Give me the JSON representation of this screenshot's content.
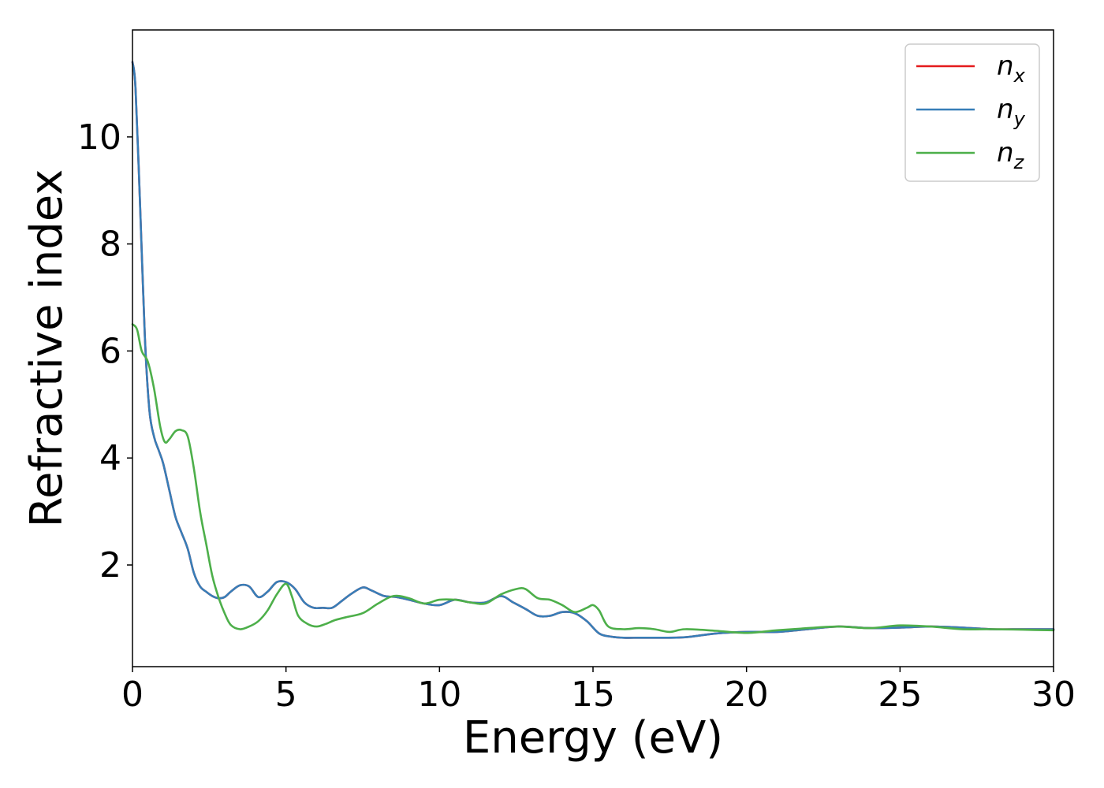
{
  "chart_data": {
    "type": "line",
    "xlabel": "Energy (eV)",
    "ylabel": "Refractive index",
    "xlim": [
      0,
      30
    ],
    "ylim": [
      0.1,
      12.0
    ],
    "x_ticks": [
      0,
      5,
      10,
      15,
      20,
      25,
      30
    ],
    "y_ticks": [
      2,
      4,
      6,
      8,
      10
    ],
    "grid": false,
    "legend_position": "top-right",
    "series": [
      {
        "name": "n_x",
        "name_base": "n",
        "name_sub": "x",
        "color": "#e41a1c",
        "x": [
          0.0,
          0.1,
          0.25,
          0.4,
          0.55,
          0.7,
          0.85,
          1.0,
          1.2,
          1.4,
          1.6,
          1.8,
          2.0,
          2.2,
          2.4,
          2.6,
          2.8,
          3.0,
          3.2,
          3.5,
          3.8,
          4.1,
          4.4,
          4.7,
          5.0,
          5.3,
          5.6,
          5.9,
          6.2,
          6.5,
          6.8,
          7.1,
          7.5,
          7.8,
          8.2,
          8.6,
          9.0,
          9.5,
          10.0,
          10.5,
          11.0,
          11.5,
          12.0,
          12.4,
          12.8,
          13.2,
          13.6,
          14.0,
          14.4,
          14.8,
          15.2,
          15.6,
          16.0,
          16.5,
          17.0,
          18.0,
          19.0,
          20.0,
          21.0,
          22.0,
          23.0,
          24.0,
          25.0,
          26.0,
          27.0,
          28.0,
          29.0,
          30.0
        ],
        "values": [
          11.4,
          10.9,
          8.7,
          6.3,
          4.9,
          4.4,
          4.15,
          3.9,
          3.4,
          2.9,
          2.6,
          2.3,
          1.85,
          1.6,
          1.5,
          1.42,
          1.38,
          1.4,
          1.5,
          1.62,
          1.6,
          1.4,
          1.5,
          1.68,
          1.68,
          1.55,
          1.3,
          1.2,
          1.2,
          1.2,
          1.32,
          1.45,
          1.58,
          1.52,
          1.42,
          1.4,
          1.35,
          1.28,
          1.25,
          1.35,
          1.3,
          1.3,
          1.42,
          1.3,
          1.18,
          1.05,
          1.05,
          1.12,
          1.1,
          0.95,
          0.72,
          0.66,
          0.64,
          0.64,
          0.64,
          0.65,
          0.72,
          0.75,
          0.75,
          0.8,
          0.85,
          0.82,
          0.83,
          0.85,
          0.83,
          0.8,
          0.8,
          0.8
        ]
      },
      {
        "name": "n_y",
        "name_base": "n",
        "name_sub": "y",
        "color": "#377eb8",
        "x": [
          0.0,
          0.1,
          0.25,
          0.4,
          0.55,
          0.7,
          0.85,
          1.0,
          1.2,
          1.4,
          1.6,
          1.8,
          2.0,
          2.2,
          2.4,
          2.6,
          2.8,
          3.0,
          3.2,
          3.5,
          3.8,
          4.1,
          4.4,
          4.7,
          5.0,
          5.3,
          5.6,
          5.9,
          6.2,
          6.5,
          6.8,
          7.1,
          7.5,
          7.8,
          8.2,
          8.6,
          9.0,
          9.5,
          10.0,
          10.5,
          11.0,
          11.5,
          12.0,
          12.4,
          12.8,
          13.2,
          13.6,
          14.0,
          14.4,
          14.8,
          15.2,
          15.6,
          16.0,
          16.5,
          17.0,
          18.0,
          19.0,
          20.0,
          21.0,
          22.0,
          23.0,
          24.0,
          25.0,
          26.0,
          27.0,
          28.0,
          29.0,
          30.0
        ],
        "values": [
          11.4,
          10.9,
          8.7,
          6.3,
          4.9,
          4.4,
          4.15,
          3.9,
          3.4,
          2.9,
          2.6,
          2.3,
          1.85,
          1.6,
          1.5,
          1.42,
          1.38,
          1.4,
          1.5,
          1.62,
          1.6,
          1.4,
          1.5,
          1.68,
          1.68,
          1.55,
          1.3,
          1.2,
          1.2,
          1.2,
          1.32,
          1.45,
          1.58,
          1.52,
          1.42,
          1.4,
          1.35,
          1.28,
          1.25,
          1.35,
          1.3,
          1.3,
          1.42,
          1.3,
          1.18,
          1.05,
          1.05,
          1.12,
          1.1,
          0.95,
          0.72,
          0.66,
          0.64,
          0.64,
          0.64,
          0.65,
          0.72,
          0.75,
          0.75,
          0.8,
          0.85,
          0.82,
          0.83,
          0.85,
          0.83,
          0.8,
          0.8,
          0.8
        ]
      },
      {
        "name": "n_z",
        "name_base": "n",
        "name_sub": "z",
        "color": "#4daf4a",
        "x": [
          0.0,
          0.15,
          0.3,
          0.5,
          0.7,
          0.9,
          1.05,
          1.2,
          1.4,
          1.6,
          1.8,
          2.0,
          2.2,
          2.4,
          2.6,
          2.8,
          3.0,
          3.2,
          3.5,
          3.8,
          4.1,
          4.4,
          4.7,
          5.0,
          5.2,
          5.4,
          5.7,
          6.0,
          6.3,
          6.6,
          7.0,
          7.5,
          8.0,
          8.5,
          9.0,
          9.5,
          10.0,
          10.5,
          11.0,
          11.5,
          12.0,
          12.5,
          12.8,
          13.2,
          13.6,
          14.0,
          14.4,
          14.8,
          15.0,
          15.2,
          15.5,
          16.0,
          16.5,
          17.0,
          17.5,
          18.0,
          19.0,
          20.0,
          21.0,
          22.0,
          23.0,
          24.0,
          25.0,
          26.0,
          27.0,
          28.0,
          29.0,
          30.0
        ],
        "values": [
          6.5,
          6.4,
          6.0,
          5.8,
          5.3,
          4.6,
          4.3,
          4.35,
          4.5,
          4.52,
          4.4,
          3.8,
          3.0,
          2.4,
          1.8,
          1.4,
          1.1,
          0.88,
          0.8,
          0.85,
          0.95,
          1.15,
          1.45,
          1.65,
          1.4,
          1.05,
          0.9,
          0.85,
          0.9,
          0.97,
          1.03,
          1.1,
          1.28,
          1.42,
          1.38,
          1.28,
          1.35,
          1.35,
          1.3,
          1.28,
          1.45,
          1.55,
          1.55,
          1.38,
          1.35,
          1.25,
          1.12,
          1.2,
          1.25,
          1.15,
          0.85,
          0.8,
          0.82,
          0.8,
          0.75,
          0.8,
          0.77,
          0.73,
          0.78,
          0.82,
          0.85,
          0.82,
          0.87,
          0.85,
          0.8,
          0.8,
          0.79,
          0.78
        ]
      }
    ]
  }
}
